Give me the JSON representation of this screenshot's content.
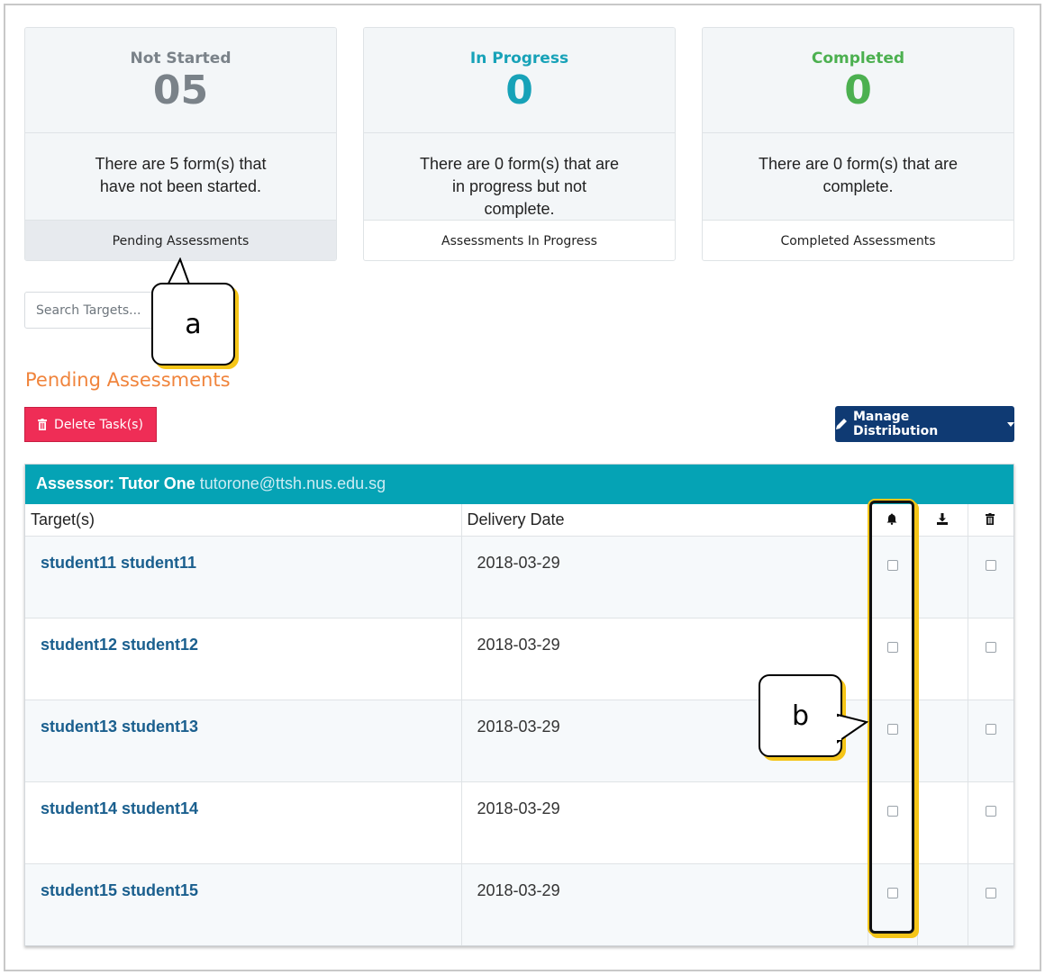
{
  "cards": [
    {
      "label": "Not Started",
      "count": "05",
      "description": "There are 5 form(s) that have not been started.",
      "footer": "Pending Assessments"
    },
    {
      "label": "In Progress",
      "count": "0",
      "description": "There are 0 form(s) that are in progress but not complete.",
      "footer": "Assessments In Progress"
    },
    {
      "label": "Completed",
      "count": "0",
      "description": "There are 0 form(s) that are complete.",
      "footer": "Completed Assessments"
    }
  ],
  "search": {
    "placeholder": "Search Targets..."
  },
  "section_title": "Pending Assessments",
  "toolbar": {
    "delete_label": "Delete Task(s)",
    "manage_label": "Manage Distribution"
  },
  "panel": {
    "assessor_label": "Assessor: Tutor One",
    "assessor_email": "tutorone@ttsh.nus.edu.sg"
  },
  "table": {
    "headers": {
      "target": "Target(s)",
      "date": "Delivery Date",
      "icons": [
        "bell-icon",
        "download-icon",
        "trash-icon"
      ]
    },
    "rows": [
      {
        "target": "student11 student11",
        "date": "2018-03-29"
      },
      {
        "target": "student12 student12",
        "date": "2018-03-29"
      },
      {
        "target": "student13 student13",
        "date": "2018-03-29"
      },
      {
        "target": "student14 student14",
        "date": "2018-03-29"
      },
      {
        "target": "student15 student15",
        "date": "2018-03-29"
      }
    ]
  },
  "callouts": {
    "a": "a",
    "b": "b"
  },
  "colors": {
    "not_started": "#7a8289",
    "in_progress": "#17a2b8",
    "completed": "#4cb050",
    "section_title": "#f0843c",
    "delete": "#ef2d56",
    "manage": "#0f3a73",
    "panel_head": "#05a3b5",
    "highlight": "#f5c518"
  }
}
